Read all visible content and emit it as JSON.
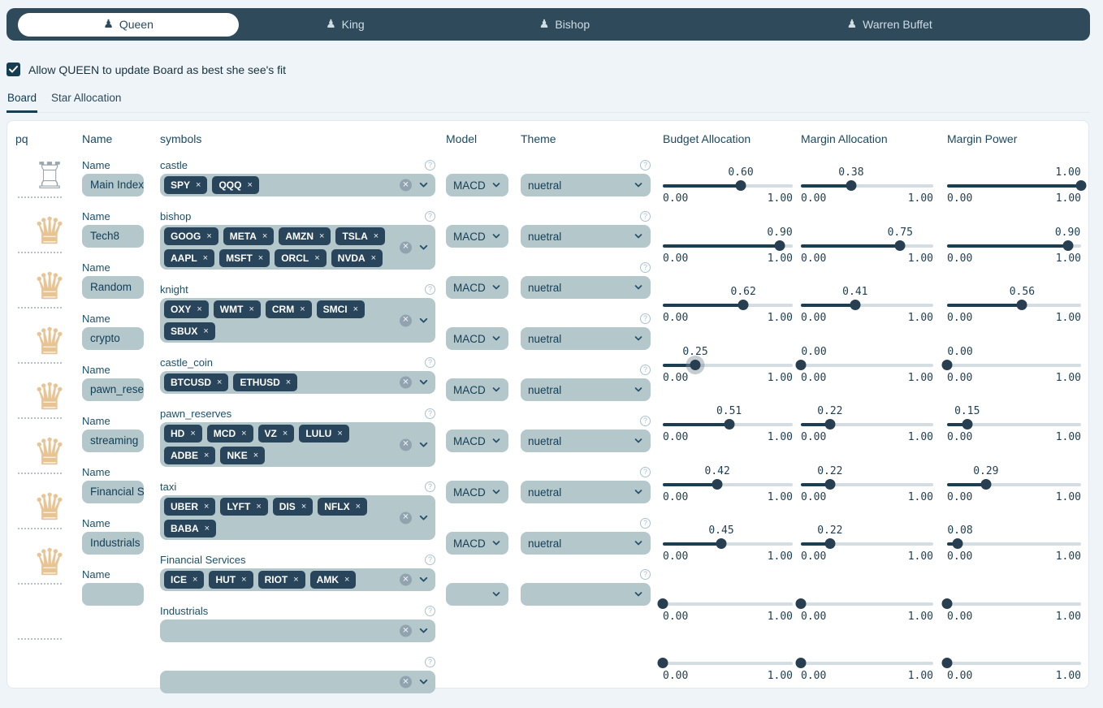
{
  "persona_bar": {
    "pawn_icon": "♟",
    "tabs": [
      {
        "label": "Queen",
        "selected": true
      },
      {
        "label": "King",
        "selected": false
      },
      {
        "label": "Bishop",
        "selected": false
      },
      {
        "label": "Warren Buffet",
        "selected": false
      }
    ]
  },
  "checkbox": {
    "label": "Allow QUEEN to update Board as best she see's fit",
    "checked": true
  },
  "view_tabs": [
    {
      "label": "Board",
      "active": true
    },
    {
      "label": "Star Allocation",
      "active": false
    }
  ],
  "board": {
    "headers": [
      "pq",
      "Name",
      "symbols",
      "Model",
      "Theme",
      "Budget Allocation",
      "Margin Allocation",
      "Margin Power"
    ],
    "name_field_label": "Name",
    "slider_min": "0.00",
    "slider_max": "1.00",
    "help_glyph": "?",
    "clear_glyph": "✕",
    "piece_glyphs": {
      "rook": "♖",
      "queen": "♛"
    },
    "rows": [
      {
        "piece": "rook",
        "name": "Main Indexes",
        "symbols_label": "castle",
        "tags": [
          "SPY",
          "QQQ"
        ],
        "model": "MACD",
        "theme": "nuetral",
        "budget": "0.60",
        "margin_allocation": "0.38",
        "margin_power": "1.00"
      },
      {
        "piece": "queen",
        "name": "Tech8",
        "symbols_label": "bishop",
        "tags": [
          "GOOG",
          "META",
          "AMZN",
          "TSLA",
          "AAPL",
          "MSFT",
          "ORCL",
          "NVDA"
        ],
        "model": "MACD",
        "theme": "nuetral",
        "budget": "0.90",
        "margin_allocation": "0.75",
        "margin_power": "0.90"
      },
      {
        "piece": "queen",
        "name": "Random",
        "symbols_label": "knight",
        "tags": [
          "OXY",
          "WMT",
          "CRM",
          "SMCI",
          "SBUX"
        ],
        "model": "MACD",
        "theme": "nuetral",
        "budget": "0.62",
        "margin_allocation": "0.41",
        "margin_power": "0.56"
      },
      {
        "piece": "queen",
        "name": "crypto",
        "symbols_label": "castle_coin",
        "tags": [
          "BTCUSD",
          "ETHUSD"
        ],
        "model": "MACD",
        "theme": "nuetral",
        "budget": "0.25",
        "budget_focus": true,
        "margin_allocation": "0.00",
        "margin_power": "0.00"
      },
      {
        "piece": "queen",
        "name": "pawn_reserv",
        "symbols_label": "pawn_reserves",
        "tags": [
          "HD",
          "MCD",
          "VZ",
          "LULU",
          "ADBE",
          "NKE"
        ],
        "model": "MACD",
        "theme": "nuetral",
        "budget": "0.51",
        "margin_allocation": "0.22",
        "margin_power": "0.15"
      },
      {
        "piece": "queen",
        "name": "streaming",
        "symbols_label": "taxi",
        "tags": [
          "UBER",
          "LYFT",
          "DIS",
          "NFLX",
          "BABA"
        ],
        "model": "MACD",
        "theme": "nuetral",
        "budget": "0.42",
        "margin_allocation": "0.22",
        "margin_power": "0.29"
      },
      {
        "piece": "queen",
        "name": "Financial Ser",
        "symbols_label": "Financial Services",
        "tags": [
          "ICE",
          "HUT",
          "RIOT",
          "AMK"
        ],
        "model": "MACD",
        "theme": "nuetral",
        "budget": "0.45",
        "margin_allocation": "0.22",
        "margin_power": "0.08"
      },
      {
        "piece": "queen",
        "name": "Industrials",
        "symbols_label": "Industrials",
        "tags": [],
        "model": "MACD",
        "theme": "nuetral",
        "budget": null,
        "margin_allocation": null,
        "margin_power": null
      },
      {
        "piece": null,
        "name": null,
        "symbols_label": null,
        "tags": [],
        "model": null,
        "theme": null,
        "budget": null,
        "margin_allocation": null,
        "margin_power": null
      }
    ]
  }
}
